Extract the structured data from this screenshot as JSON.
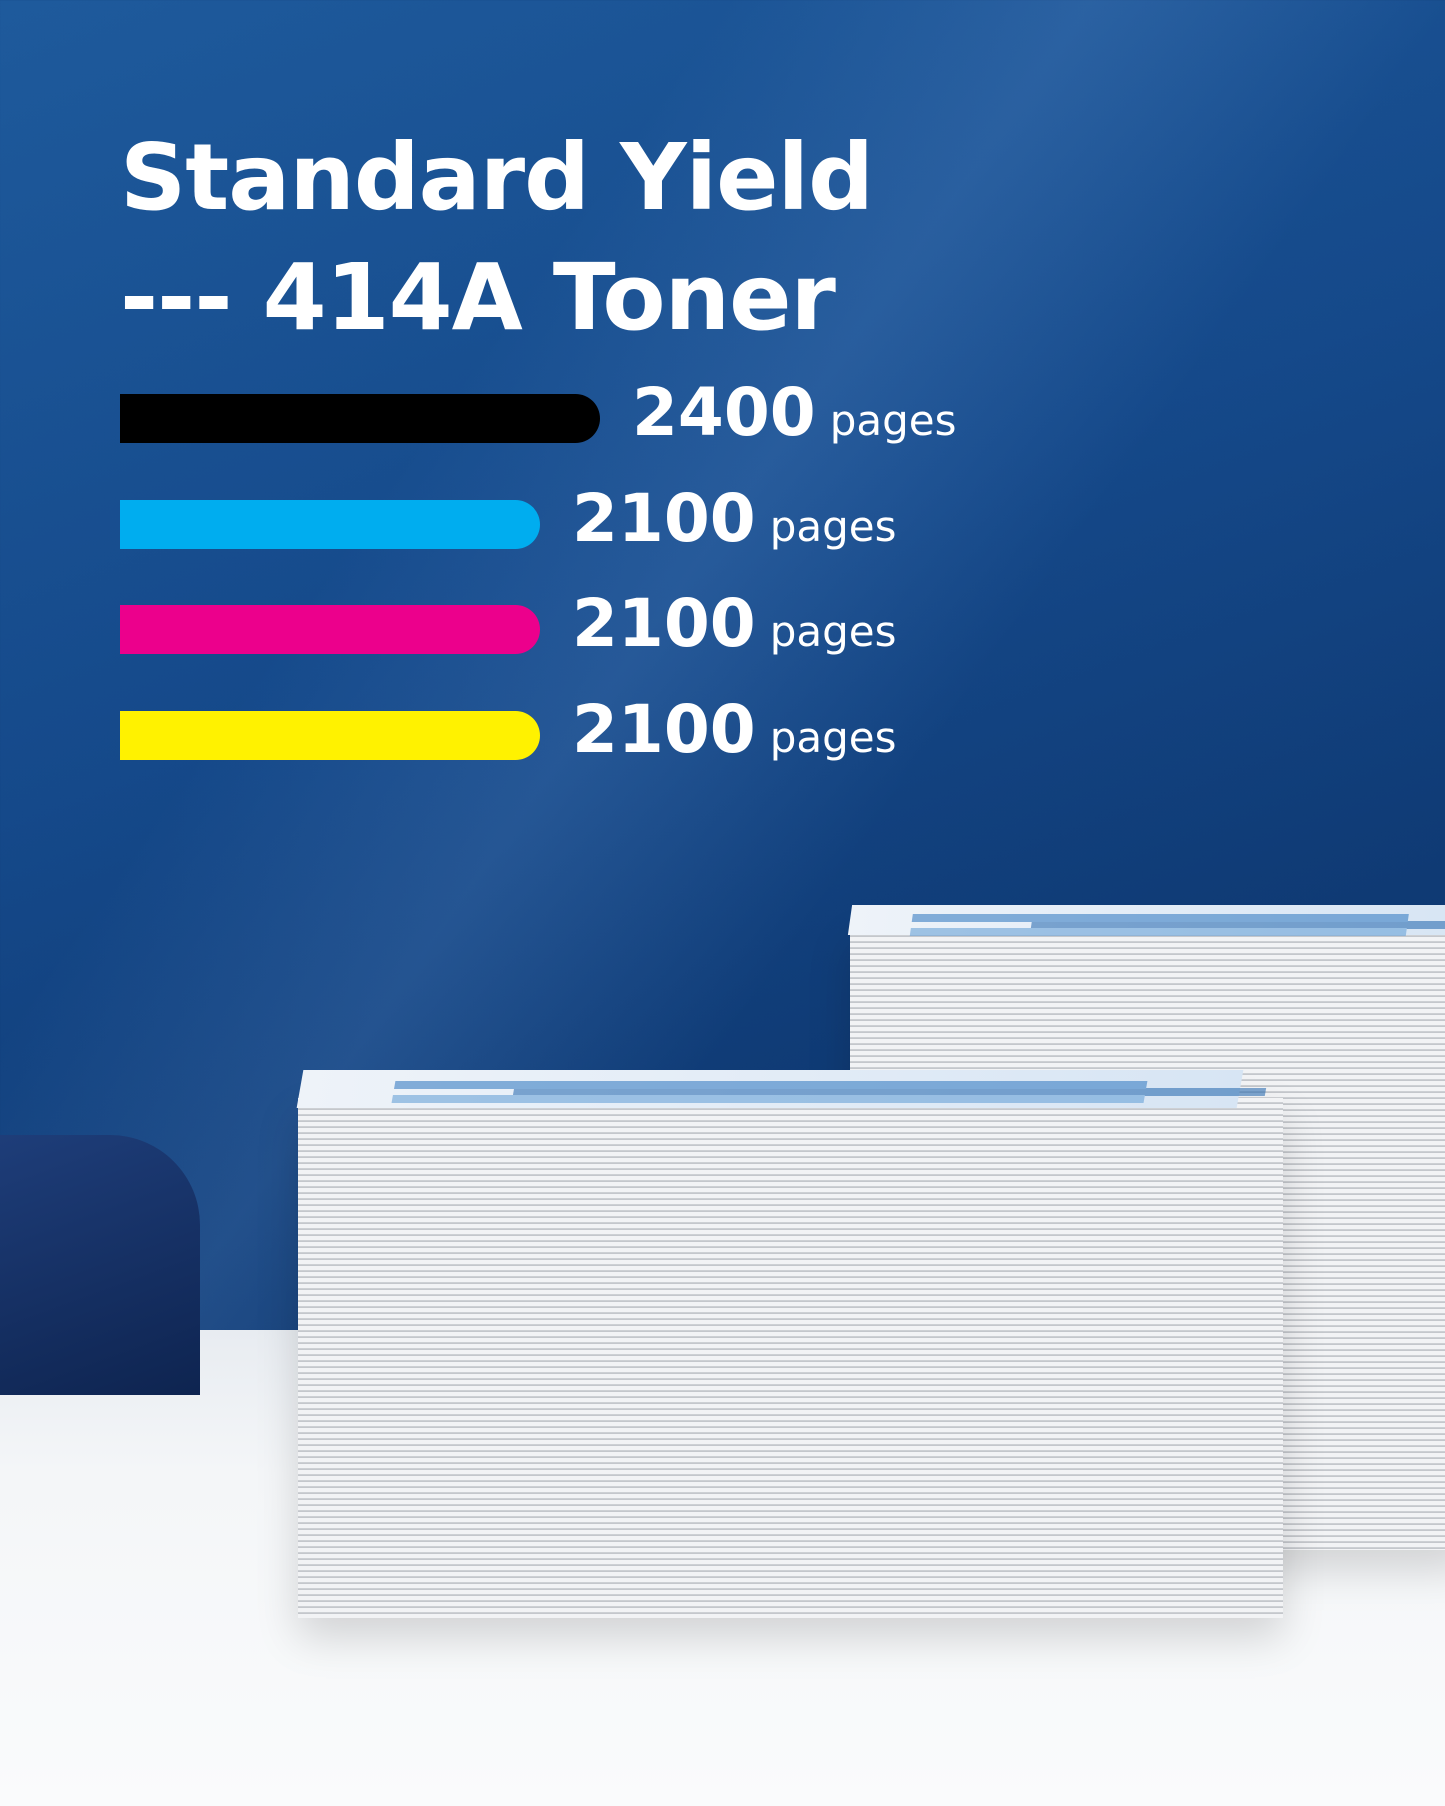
{
  "title": {
    "line1": "Standard Yield",
    "line2": "--- 414A Toner"
  },
  "bars": [
    {
      "color_name": "black",
      "color": "#000000",
      "value": 2400,
      "number": "2400",
      "unit": "pages"
    },
    {
      "color_name": "cyan",
      "color": "#00adef",
      "value": 2100,
      "number": "2100",
      "unit": "pages"
    },
    {
      "color_name": "magenta",
      "color": "#ec008c",
      "value": 2100,
      "number": "2100",
      "unit": "pages"
    },
    {
      "color_name": "yellow",
      "color": "#fff200",
      "value": 2100,
      "number": "2100",
      "unit": "pages"
    }
  ]
}
